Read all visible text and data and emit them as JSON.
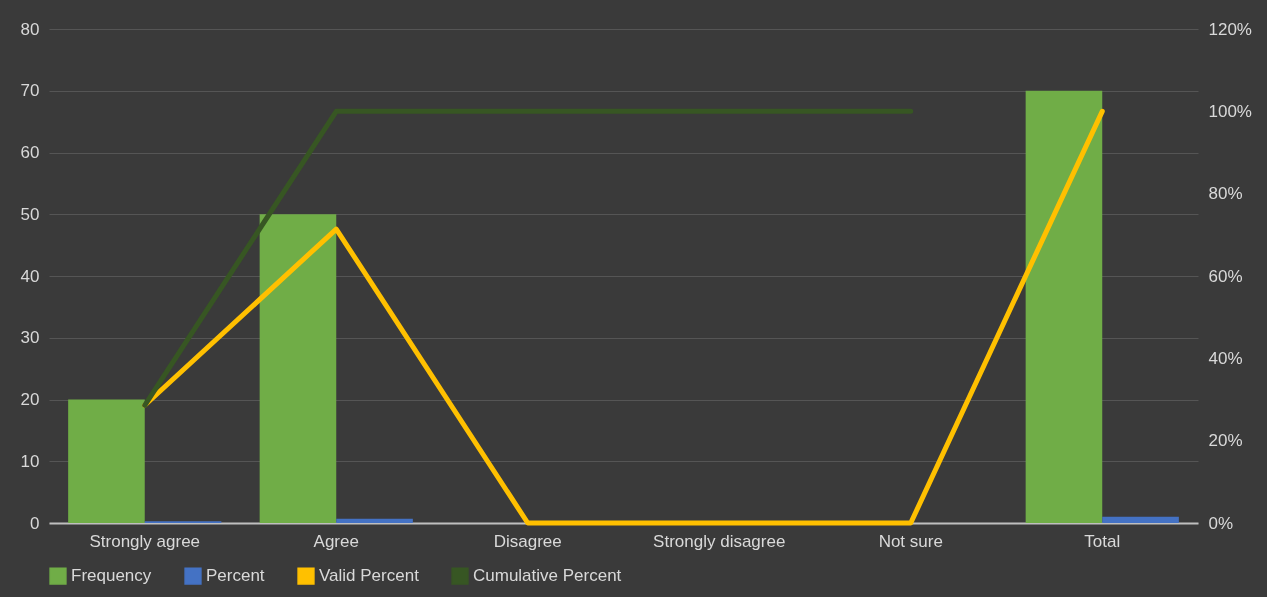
{
  "chart_data": {
    "type": "bar",
    "categories": [
      "Strongly agree",
      "Agree",
      "Disagree",
      "Strongly disagree",
      "Not sure",
      "Total"
    ],
    "series": [
      {
        "name": "Frequency",
        "color": "#70ad47",
        "values": [
          20,
          50,
          0,
          0,
          0,
          70
        ]
      },
      {
        "name": "Percent",
        "color": "#4472c4",
        "values": [
          0.3,
          0.7,
          0,
          0,
          0,
          1
        ]
      },
      {
        "name": "Valid Percent",
        "type": "line",
        "axis": "y2",
        "color": "#ffc000",
        "values": [
          28.6,
          71.4,
          0,
          0,
          0,
          100
        ]
      },
      {
        "name": "Cumulative Percent",
        "type": "line",
        "axis": "y2",
        "color": "#375623",
        "values": [
          28.6,
          100,
          100,
          100,
          100,
          null
        ]
      }
    ],
    "ylim": [
      0,
      80
    ],
    "yticks": [
      0,
      10,
      20,
      30,
      40,
      50,
      60,
      70,
      80
    ],
    "y2lim": [
      0,
      120
    ],
    "y2ticks": [
      {
        "value": 0,
        "label": "0%"
      },
      {
        "value": 20,
        "label": "20%"
      },
      {
        "value": 40,
        "label": "40%"
      },
      {
        "value": 60,
        "label": "60%"
      },
      {
        "value": 80,
        "label": "80%"
      },
      {
        "value": 100,
        "label": "100%"
      },
      {
        "value": 120,
        "label": "120%"
      }
    ],
    "grid": "y",
    "legend": "bottom"
  }
}
